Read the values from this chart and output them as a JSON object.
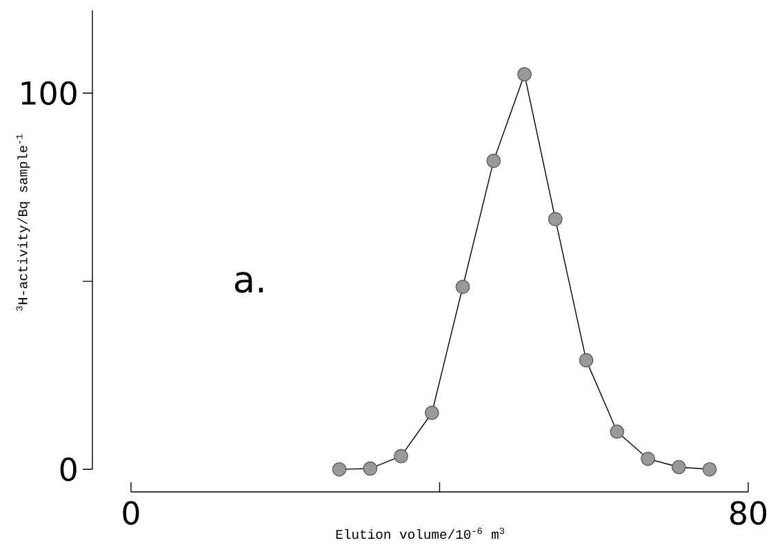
{
  "chart_data": {
    "type": "line",
    "xlabel": "Elution volume/10$^{-6}$ m$^{3}$",
    "ylabel": "$^{3}$H-activity/Bq sample$^{-1}$",
    "annotations": [
      "a."
    ],
    "x": [
      27,
      31,
      35,
      39,
      43,
      47,
      51,
      55,
      59,
      63,
      67,
      71,
      75
    ],
    "series": [
      {
        "color": "#999999",
        "values": [
          0,
          0.2,
          3.5,
          15,
          48.5,
          82,
          105,
          66.5,
          29,
          10,
          2.8,
          0.6,
          0
        ]
      }
    ],
    "xlim": [
      -5,
      80
    ],
    "ylim": [
      -6,
      122
    ],
    "xticks": [
      0,
      {
        "value": 40,
        "label": null
      },
      80
    ],
    "yticks": [
      0,
      {
        "value": 50,
        "label": null
      },
      100
    ],
    "marker": "circle",
    "line_style": "solid"
  }
}
